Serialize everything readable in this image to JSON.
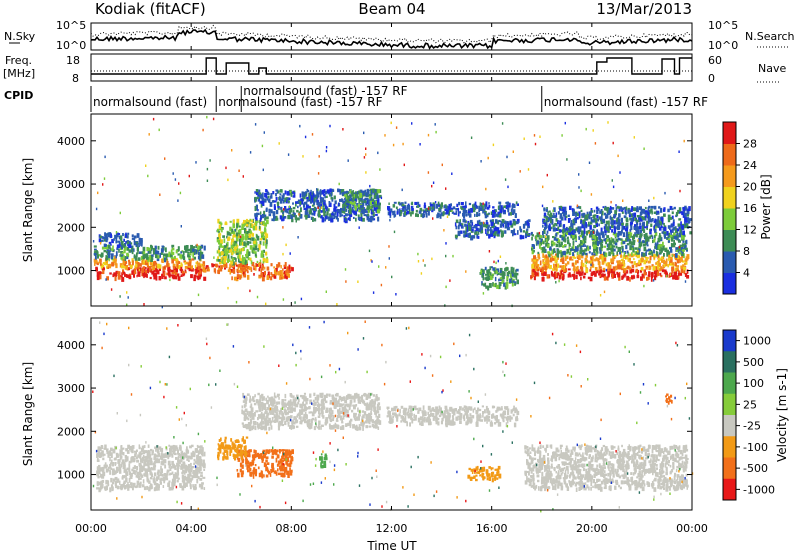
{
  "chart_data": {
    "type": "heatmap",
    "header": {
      "left_title": "Kodiak (fitACF)",
      "center_title": "Beam 04",
      "right_title": "13/Mar/2013"
    },
    "noise_panel": {
      "left_label": "N.Sky",
      "right_label": "N.Search",
      "left_ticks": [
        "10^5",
        "10^0"
      ],
      "right_ticks": [
        "10^5",
        "10^0"
      ]
    },
    "freq_panel": {
      "left_label_line1": "Freq.",
      "left_label_line2": "[MHz]",
      "right_label": "Nave",
      "left_ticks": [
        "18",
        "8"
      ],
      "right_ticks": [
        "60",
        "0"
      ]
    },
    "cpid": {
      "label": "CPID",
      "segments": [
        {
          "start_hour": 0.0,
          "end_hour": 5.0,
          "text": "normalsound (fast)"
        },
        {
          "start_hour": 5.0,
          "end_hour": 5.3,
          "text": "normalsound (fast) -157 RF"
        },
        {
          "start_hour": 6.0,
          "end_hour": 18.0,
          "text": "normalsound (fast) -157 RF"
        },
        {
          "start_hour": 18.0,
          "end_hour": 24.0,
          "text": "normalsound (fast) -157 RF"
        }
      ]
    },
    "x_axis": {
      "label": "Time UT",
      "range_hours": [
        0,
        24
      ],
      "ticks": [
        0,
        4,
        8,
        12,
        16,
        20,
        24
      ],
      "tick_labels": [
        "00:00",
        "04:00",
        "08:00",
        "12:00",
        "16:00",
        "20:00",
        "00:00"
      ]
    },
    "y_axis": {
      "label": "Slant Range [km]",
      "range": [
        180,
        4620
      ],
      "ticks": [
        1000,
        2000,
        3000,
        4000
      ]
    },
    "power_scale": {
      "label": "Power [dB]",
      "ticks": [
        4,
        8,
        12,
        16,
        20,
        24,
        28
      ],
      "colors": [
        "#1a2fe0",
        "#2a5bb0",
        "#3d8c55",
        "#7dcc3a",
        "#f0d21e",
        "#f59a1c",
        "#ee6a1a",
        "#e01818"
      ]
    },
    "velocity_scale": {
      "label": "Velocity [m s-1]",
      "tick_labels": [
        "1000",
        "500",
        "100",
        "25",
        "-25",
        "-100",
        "-500",
        "-1000"
      ],
      "colors": [
        "#1a3acc",
        "#2a7060",
        "#4da84d",
        "#86cc3a",
        "#c8c8c0",
        "#f29a16",
        "#f2701a",
        "#e81818"
      ]
    },
    "power_features": [
      {
        "t0": 0.1,
        "t1": 4.5,
        "r0": 850,
        "r1": 1100,
        "level": 7
      },
      {
        "t0": 0.1,
        "t1": 4.5,
        "r0": 1100,
        "r1": 1300,
        "level": 5
      },
      {
        "t0": 0.1,
        "t1": 4.5,
        "r0": 1300,
        "r1": 1600,
        "level": 2
      },
      {
        "t0": 0.3,
        "t1": 2.0,
        "r0": 1600,
        "r1": 1900,
        "level": 1
      },
      {
        "t0": 4.2,
        "t1": 5.6,
        "r0": 1000,
        "r1": 1200,
        "level": 6
      },
      {
        "t0": 5.6,
        "t1": 8.0,
        "r0": 850,
        "r1": 1200,
        "level": 6
      },
      {
        "t0": 5.0,
        "t1": 7.0,
        "r0": 1200,
        "r1": 2200,
        "level": 3
      },
      {
        "t0": 6.5,
        "t1": 11.5,
        "r0": 2200,
        "r1": 2900,
        "level": 1
      },
      {
        "t0": 10.0,
        "t1": 11.5,
        "r0": 2400,
        "r1": 2900,
        "level": 2
      },
      {
        "t0": 11.8,
        "t1": 17.0,
        "r0": 2300,
        "r1": 2600,
        "level": 1
      },
      {
        "t0": 14.5,
        "t1": 17.5,
        "r0": 1800,
        "r1": 2200,
        "level": 1
      },
      {
        "t0": 15.5,
        "t1": 17.0,
        "r0": 650,
        "r1": 1100,
        "level": 2
      },
      {
        "t0": 17.5,
        "t1": 23.8,
        "r0": 850,
        "r1": 1050,
        "level": 7
      },
      {
        "t0": 17.5,
        "t1": 23.8,
        "r0": 1050,
        "r1": 1400,
        "level": 5
      },
      {
        "t0": 17.5,
        "t1": 23.8,
        "r0": 1400,
        "r1": 1900,
        "level": 2
      },
      {
        "t0": 18.0,
        "t1": 23.9,
        "r0": 1900,
        "r1": 2500,
        "level": 1
      }
    ],
    "velocity_features": [
      {
        "t0": 0.2,
        "t1": 4.5,
        "r0": 700,
        "r1": 1700,
        "level": 4
      },
      {
        "t0": 5.8,
        "t1": 8.0,
        "r0": 1000,
        "r1": 1600,
        "level": 6
      },
      {
        "t0": 5.0,
        "t1": 6.2,
        "r0": 1400,
        "r1": 1900,
        "level": 5
      },
      {
        "t0": 6.0,
        "t1": 11.5,
        "r0": 2100,
        "r1": 2900,
        "level": 4
      },
      {
        "t0": 11.8,
        "t1": 17.0,
        "r0": 2200,
        "r1": 2600,
        "level": 4
      },
      {
        "t0": 15.0,
        "t1": 16.3,
        "r0": 900,
        "r1": 1200,
        "level": 5
      },
      {
        "t0": 17.3,
        "t1": 23.8,
        "r0": 700,
        "r1": 1700,
        "level": 4
      },
      {
        "t0": 9.1,
        "t1": 9.4,
        "r0": 1200,
        "r1": 1500,
        "level": 2
      },
      {
        "t0": 22.9,
        "t1": 23.2,
        "r0": 2700,
        "r1": 2900,
        "level": 6
      }
    ]
  }
}
